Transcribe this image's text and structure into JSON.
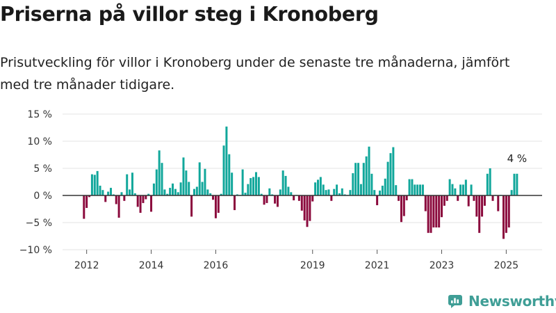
{
  "header": {
    "title": "Priserna på villor steg i Kronoberg",
    "subtitle": "Prisutveckling för villor i Kronoberg under de senaste tre månaderna, jämfört med tre månader tidigare."
  },
  "brand": {
    "name": "Newsworthy",
    "icon": "newsworthy-logo-icon",
    "color": "#3f9e96"
  },
  "chart_data": {
    "type": "bar",
    "x_start": "2011-12",
    "x_frequency": "monthly",
    "colors": {
      "positive": "#11a79b",
      "negative": "#8b0a3d",
      "gridline": "#e3e3e3",
      "zero_line": "#333333"
    },
    "ylim": [
      -10,
      15
    ],
    "yticks": [
      15,
      10,
      5,
      0,
      -5,
      -10
    ],
    "ytick_labels": [
      "15 %",
      "10 %",
      "5 %",
      "0 %",
      "−5 %",
      "−10 %"
    ],
    "xticks": [
      {
        "label": "2012",
        "date": "2012-01"
      },
      {
        "label": "2014",
        "date": "2014-01"
      },
      {
        "label": "2016",
        "date": "2016-01"
      },
      {
        "label": "2019",
        "date": "2019-01"
      },
      {
        "label": "2021",
        "date": "2021-01"
      },
      {
        "label": "2023",
        "date": "2023-01"
      },
      {
        "label": "2025",
        "date": "2025-01"
      }
    ],
    "grid": true,
    "legend": "none",
    "annotation": {
      "label": "4 %",
      "date": "2025-05"
    },
    "values": [
      -4.3,
      -2.3,
      -0.3,
      3.9,
      3.8,
      4.5,
      1.8,
      1.0,
      -1.2,
      0.7,
      1.4,
      0.2,
      -1.6,
      -4.1,
      0.6,
      -1.0,
      3.9,
      1.1,
      4.2,
      0.4,
      -2.1,
      -3.2,
      -1.4,
      -0.7,
      0.3,
      -3.0,
      2.2,
      4.8,
      8.3,
      6.0,
      1.1,
      0.3,
      1.4,
      2.2,
      1.2,
      0.6,
      2.4,
      7.0,
      4.6,
      2.5,
      -3.9,
      1.2,
      1.6,
      6.1,
      2.5,
      4.9,
      1.1,
      0.4,
      -0.8,
      -4.2,
      -3.2,
      0.3,
      9.2,
      12.7,
      7.6,
      4.2,
      -2.7,
      0.2,
      0.1,
      4.8,
      0.5,
      2.1,
      3.2,
      3.4,
      4.3,
      3.4,
      0.3,
      -1.7,
      -1.4,
      1.3,
      0.2,
      -1.5,
      -2.1,
      1.1,
      4.6,
      3.6,
      1.6,
      0.6,
      -0.9,
      0.1,
      -1.0,
      -2.8,
      -4.6,
      -5.8,
      -4.7,
      -1.1,
      2.4,
      2.9,
      3.4,
      2.0,
      1.0,
      1.1,
      -1.0,
      1.2,
      2.0,
      0.4,
      1.3,
      0.2,
      0.1,
      1.0,
      4.1,
      6.0,
      6.0,
      2.1,
      6.0,
      7.2,
      9.0,
      4.0,
      1.0,
      -1.8,
      0.9,
      1.8,
      3.1,
      6.2,
      7.8,
      8.9,
      1.9,
      -1.0,
      -4.9,
      -3.8,
      -0.9,
      3.0,
      3.0,
      2.0,
      2.0,
      2.0,
      2.0,
      -2.9,
      -6.9,
      -6.9,
      -5.9,
      -5.9,
      -5.9,
      -4.0,
      -1.9,
      -1.0,
      3.0,
      2.1,
      1.3,
      -1.0,
      2.0,
      2.0,
      2.9,
      -2.0,
      2.0,
      -1.0,
      -3.9,
      -6.9,
      -3.9,
      -1.9,
      4.0,
      5.0,
      -1.0,
      0.1,
      -2.9,
      0.1,
      -8.0,
      -6.9,
      -5.9,
      1.0,
      4.0,
      4.0
    ]
  }
}
